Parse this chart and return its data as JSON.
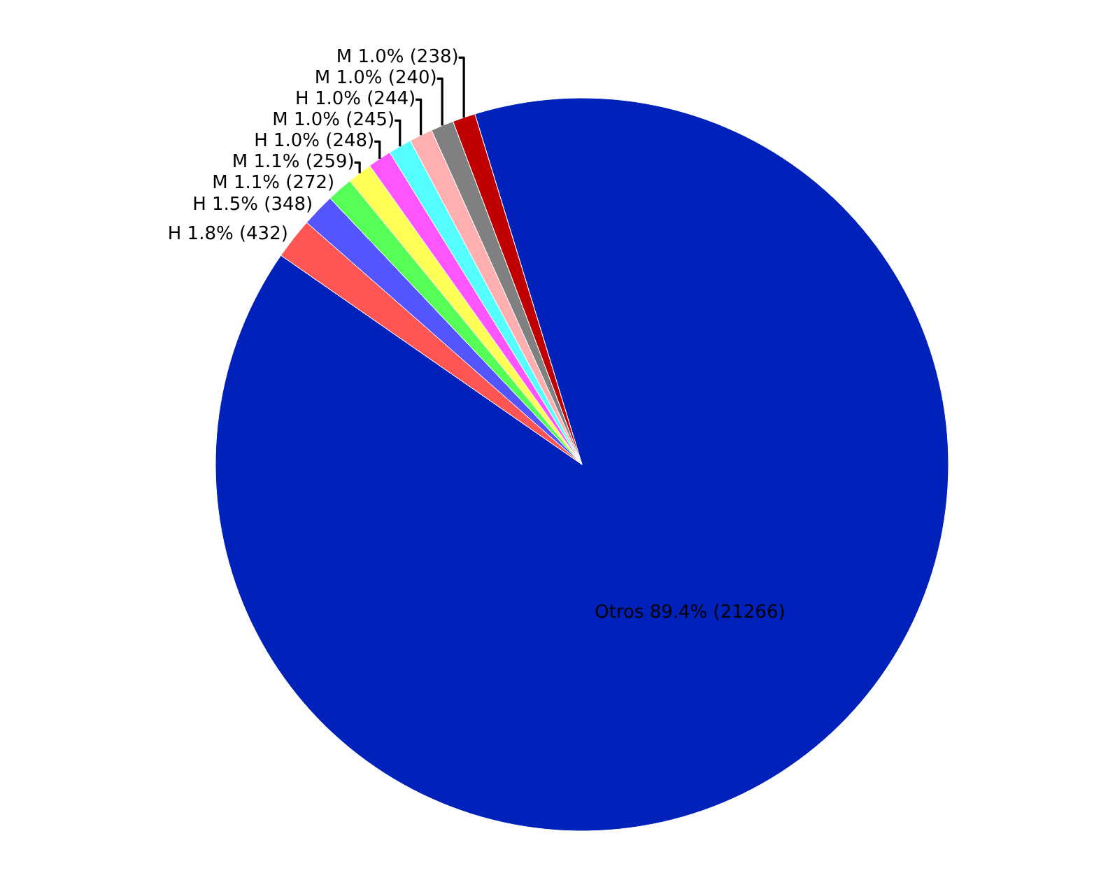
{
  "chart_data": {
    "type": "pie",
    "categories": [
      "Otros",
      "H",
      "H",
      "M",
      "M",
      "H",
      "M",
      "H",
      "M",
      "M"
    ],
    "values": [
      21266,
      432,
      348,
      272,
      259,
      248,
      245,
      244,
      240,
      238
    ],
    "colors": [
      "#0022bb",
      "#ff5555",
      "#5555ff",
      "#55ff55",
      "#ffff55",
      "#ff55ff",
      "#55ffff",
      "#ffafaf",
      "#808080",
      "#c00000"
    ],
    "value_labels": [
      "89.4% (21266)",
      "1.8% (432)",
      "1.5% (348)",
      "1.1% (272)",
      "1.1% (259)",
      "1.0% (248)",
      "1.0% (245)",
      "1.0% (244)",
      "1.0% (240)",
      "1.0% (238)"
    ],
    "legend": false
  }
}
